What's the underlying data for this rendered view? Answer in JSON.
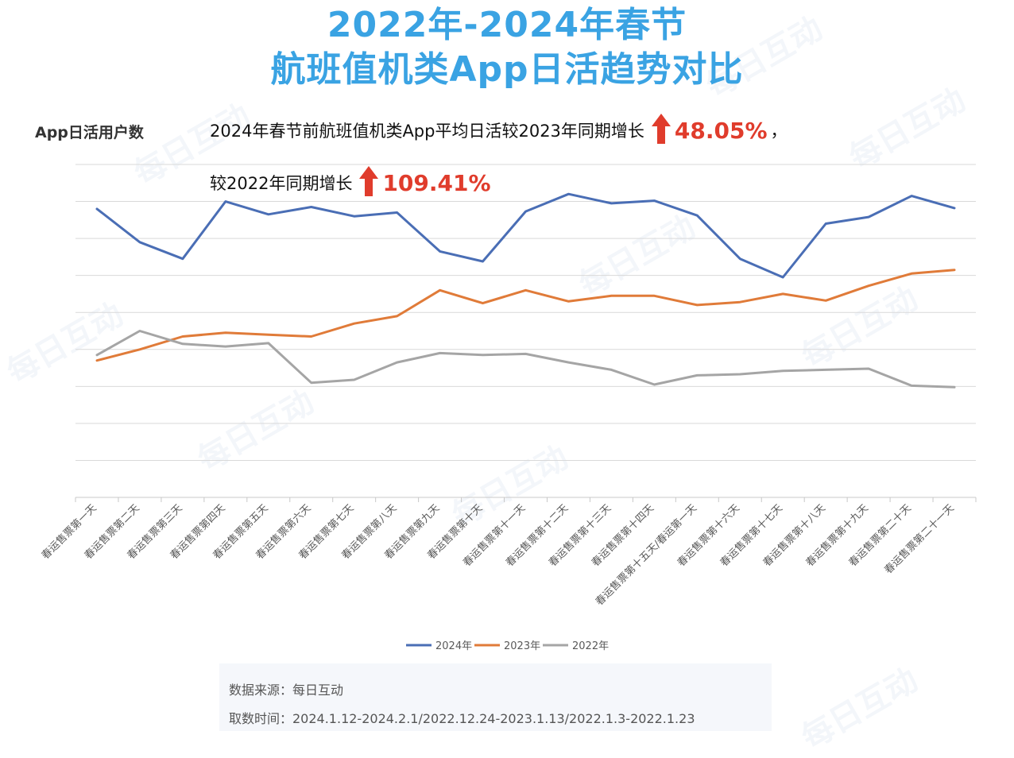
{
  "title": {
    "line1": "2022年-2024年春节",
    "line2": "航班值机类App日活趋势对比"
  },
  "annotation": {
    "line1_text": "2024年春节前航班值机类App平均日活较2023年同期增长",
    "line1_pct": "48.05%",
    "line1_tail": "，",
    "line2_text": "较2022年同期增长",
    "line2_pct": "109.41%",
    "arrow_icon": "up-arrow-icon",
    "highlight_color": "#e03c2c"
  },
  "source": {
    "line1": "数据来源：每日互动",
    "line2": "取数时间：2024.1.12-2024.2.1/2022.12.24-2023.1.13/2022.1.3-2022.1.23"
  },
  "watermark": "每日互动",
  "chart_data": {
    "type": "line",
    "title": "2022年-2024年春节航班值机类App日活趋势对比",
    "ylabel": "App日活用户数",
    "xlabel": "",
    "ylim": [
      0,
      9
    ],
    "grid": true,
    "legend_position": "bottom",
    "categories": [
      "春运售票第一天",
      "春运售票第二天",
      "春运售票第三天",
      "春运售票第四天",
      "春运售票第五天",
      "春运售票第六天",
      "春运售票第七天",
      "春运售票第八天",
      "春运售票第九天",
      "春运售票第十天",
      "春运售票第十一天",
      "春运售票第十二天",
      "春运售票第十三天",
      "春运售票第十四天",
      "春运售票第十五天/春运第一天",
      "春运售票第十六天",
      "春运售票第十七天",
      "春运售票第十八天",
      "春运售票第十九天",
      "春运售票第二十天",
      "春运售票第二十一天"
    ],
    "series": [
      {
        "name": "2024年",
        "color": "#4a6eb5",
        "values": [
          7.8,
          6.9,
          6.45,
          8.0,
          7.65,
          7.85,
          7.6,
          7.7,
          6.65,
          6.38,
          7.73,
          8.2,
          7.95,
          8.02,
          7.62,
          6.45,
          5.95,
          7.4,
          7.58,
          8.15,
          7.82
        ]
      },
      {
        "name": "2023年",
        "color": "#e07b39",
        "values": [
          3.7,
          4.0,
          4.35,
          4.45,
          4.4,
          4.35,
          4.7,
          4.9,
          5.6,
          5.25,
          5.6,
          5.3,
          5.45,
          5.45,
          5.2,
          5.28,
          5.5,
          5.32,
          5.72,
          6.05,
          6.15
        ]
      },
      {
        "name": "2022年",
        "color": "#a5a5a5",
        "values": [
          3.85,
          4.5,
          4.15,
          4.08,
          4.17,
          3.1,
          3.18,
          3.65,
          3.9,
          3.85,
          3.88,
          3.65,
          3.45,
          3.05,
          3.3,
          3.33,
          3.42,
          3.45,
          3.48,
          3.02,
          2.98
        ]
      }
    ]
  }
}
